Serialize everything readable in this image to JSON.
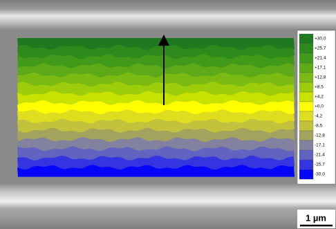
{
  "legend": {
    "entries": [
      {
        "label": "+30,0",
        "color": "#1f7a1f"
      },
      {
        "label": "+25,7",
        "color": "#2f8a1c"
      },
      {
        "label": "+21,4",
        "color": "#419a19"
      },
      {
        "label": "+17,1",
        "color": "#5caa17"
      },
      {
        "label": "+12,8",
        "color": "#7aba12"
      },
      {
        "label": "+8,5",
        "color": "#9ccc0a"
      },
      {
        "label": "+4,2",
        "color": "#c8e200"
      },
      {
        "label": "+0,0",
        "color": "#ffff00"
      },
      {
        "label": "-4,2",
        "color": "#dede1e"
      },
      {
        "label": "-8,5",
        "color": "#c2c23c"
      },
      {
        "label": "-12,8",
        "color": "#a3a35e"
      },
      {
        "label": "-17,1",
        "color": "#8282a0"
      },
      {
        "label": "-21,4",
        "color": "#6262c0"
      },
      {
        "label": "-25,7",
        "color": "#3434e0"
      },
      {
        "label": "-30,0",
        "color": "#0505fa"
      }
    ]
  },
  "scale_bar": {
    "label": "1 µm"
  }
}
